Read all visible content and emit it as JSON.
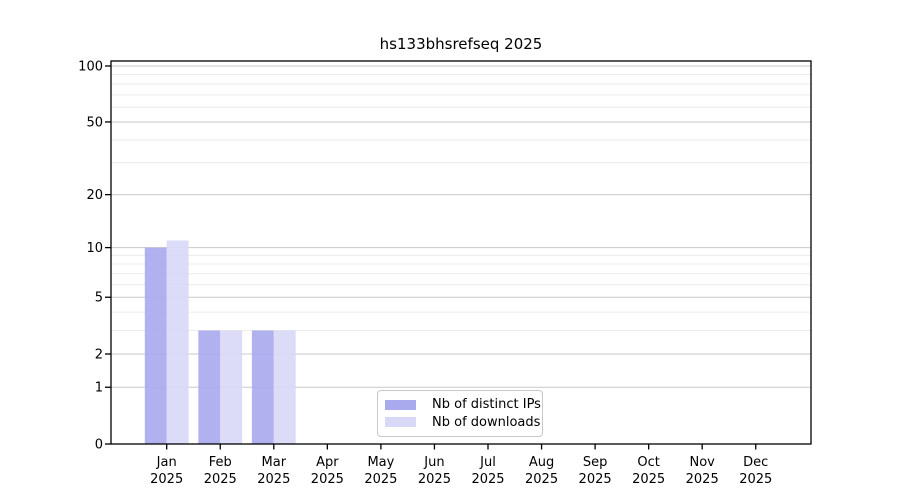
{
  "title": "hs133bhsrefseq 2025",
  "chart_data": {
    "type": "bar",
    "title": "hs133bhsrefseq 2025",
    "categories": [
      "Jan",
      "Feb",
      "Mar",
      "Apr",
      "May",
      "Jun",
      "Jul",
      "Aug",
      "Sep",
      "Oct",
      "Nov",
      "Dec"
    ],
    "x_year_label": "2025",
    "series": [
      {
        "name": "Nb of distinct IPs",
        "color": "#a9a9ee",
        "values": [
          10,
          3,
          3,
          0,
          0,
          0,
          0,
          0,
          0,
          0,
          0,
          0
        ]
      },
      {
        "name": "Nb of downloads",
        "color": "#d8d8f7",
        "values": [
          11,
          3,
          3,
          0,
          0,
          0,
          0,
          0,
          0,
          0,
          0,
          0
        ]
      }
    ],
    "yscale": "log1p",
    "ylim": [
      0,
      106
    ],
    "yticks": [
      0,
      1,
      2,
      5,
      10,
      20,
      50,
      100
    ],
    "minor_yticks": [
      3,
      4,
      6,
      7,
      8,
      9,
      30,
      40,
      60,
      70,
      80,
      90
    ],
    "grid": true,
    "legend_position": "lower center",
    "colors": {
      "major_grid": "#c9c9c9",
      "minor_grid": "#ececec",
      "axis": "#000000",
      "text": "#000000"
    }
  }
}
